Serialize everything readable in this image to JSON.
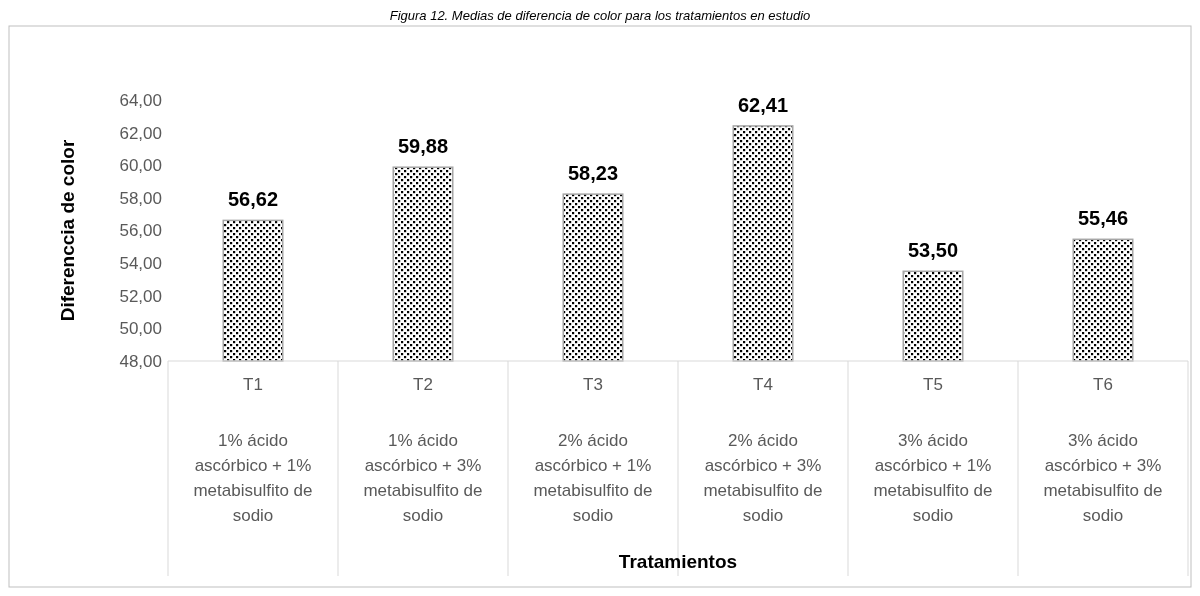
{
  "chart_data": {
    "type": "bar",
    "title": "Figura 12. Medias de diferencia de color para los tratamientos en estudio",
    "annotations": [
      "Tratamientos"
    ],
    "ylabel": "Diferenccia de color",
    "categories": [
      "T1\n1% ácido ascórbico + 1% metabisulfito de sodio",
      "T2\n1% ácido ascórbico + 3% metabisulfito de sodio",
      "T3\n2% ácido ascórbico + 1% metabisulfito de sodio",
      "T4\n2% ácido ascórbico + 3% metabisulfito de sodio",
      "T5\n3% ácido ascórbico + 1% metabisulfito de sodio",
      "T6\n3% ácido ascórbico + 3% metabisulfito de sodio"
    ],
    "values": [
      56.62,
      59.88,
      58.23,
      62.41,
      53.5,
      55.46
    ],
    "value_labels": [
      "56,62",
      "59,88",
      "58,23",
      "62,41",
      "53,50",
      "55,46"
    ],
    "color": "#a6a6a6",
    "ylim": [
      48,
      64
    ],
    "yticks": [
      {
        "value": 48,
        "label": "48,00"
      },
      {
        "value": 50,
        "label": "50,00"
      },
      {
        "value": 52,
        "label": "52,00"
      },
      {
        "value": 54,
        "label": "54,00"
      },
      {
        "value": 56,
        "label": "56,00"
      },
      {
        "value": 58,
        "label": "58,00"
      },
      {
        "value": 60,
        "label": "60,00"
      },
      {
        "value": 62,
        "label": "62,00"
      },
      {
        "value": 64,
        "label": "64,00"
      }
    ]
  }
}
